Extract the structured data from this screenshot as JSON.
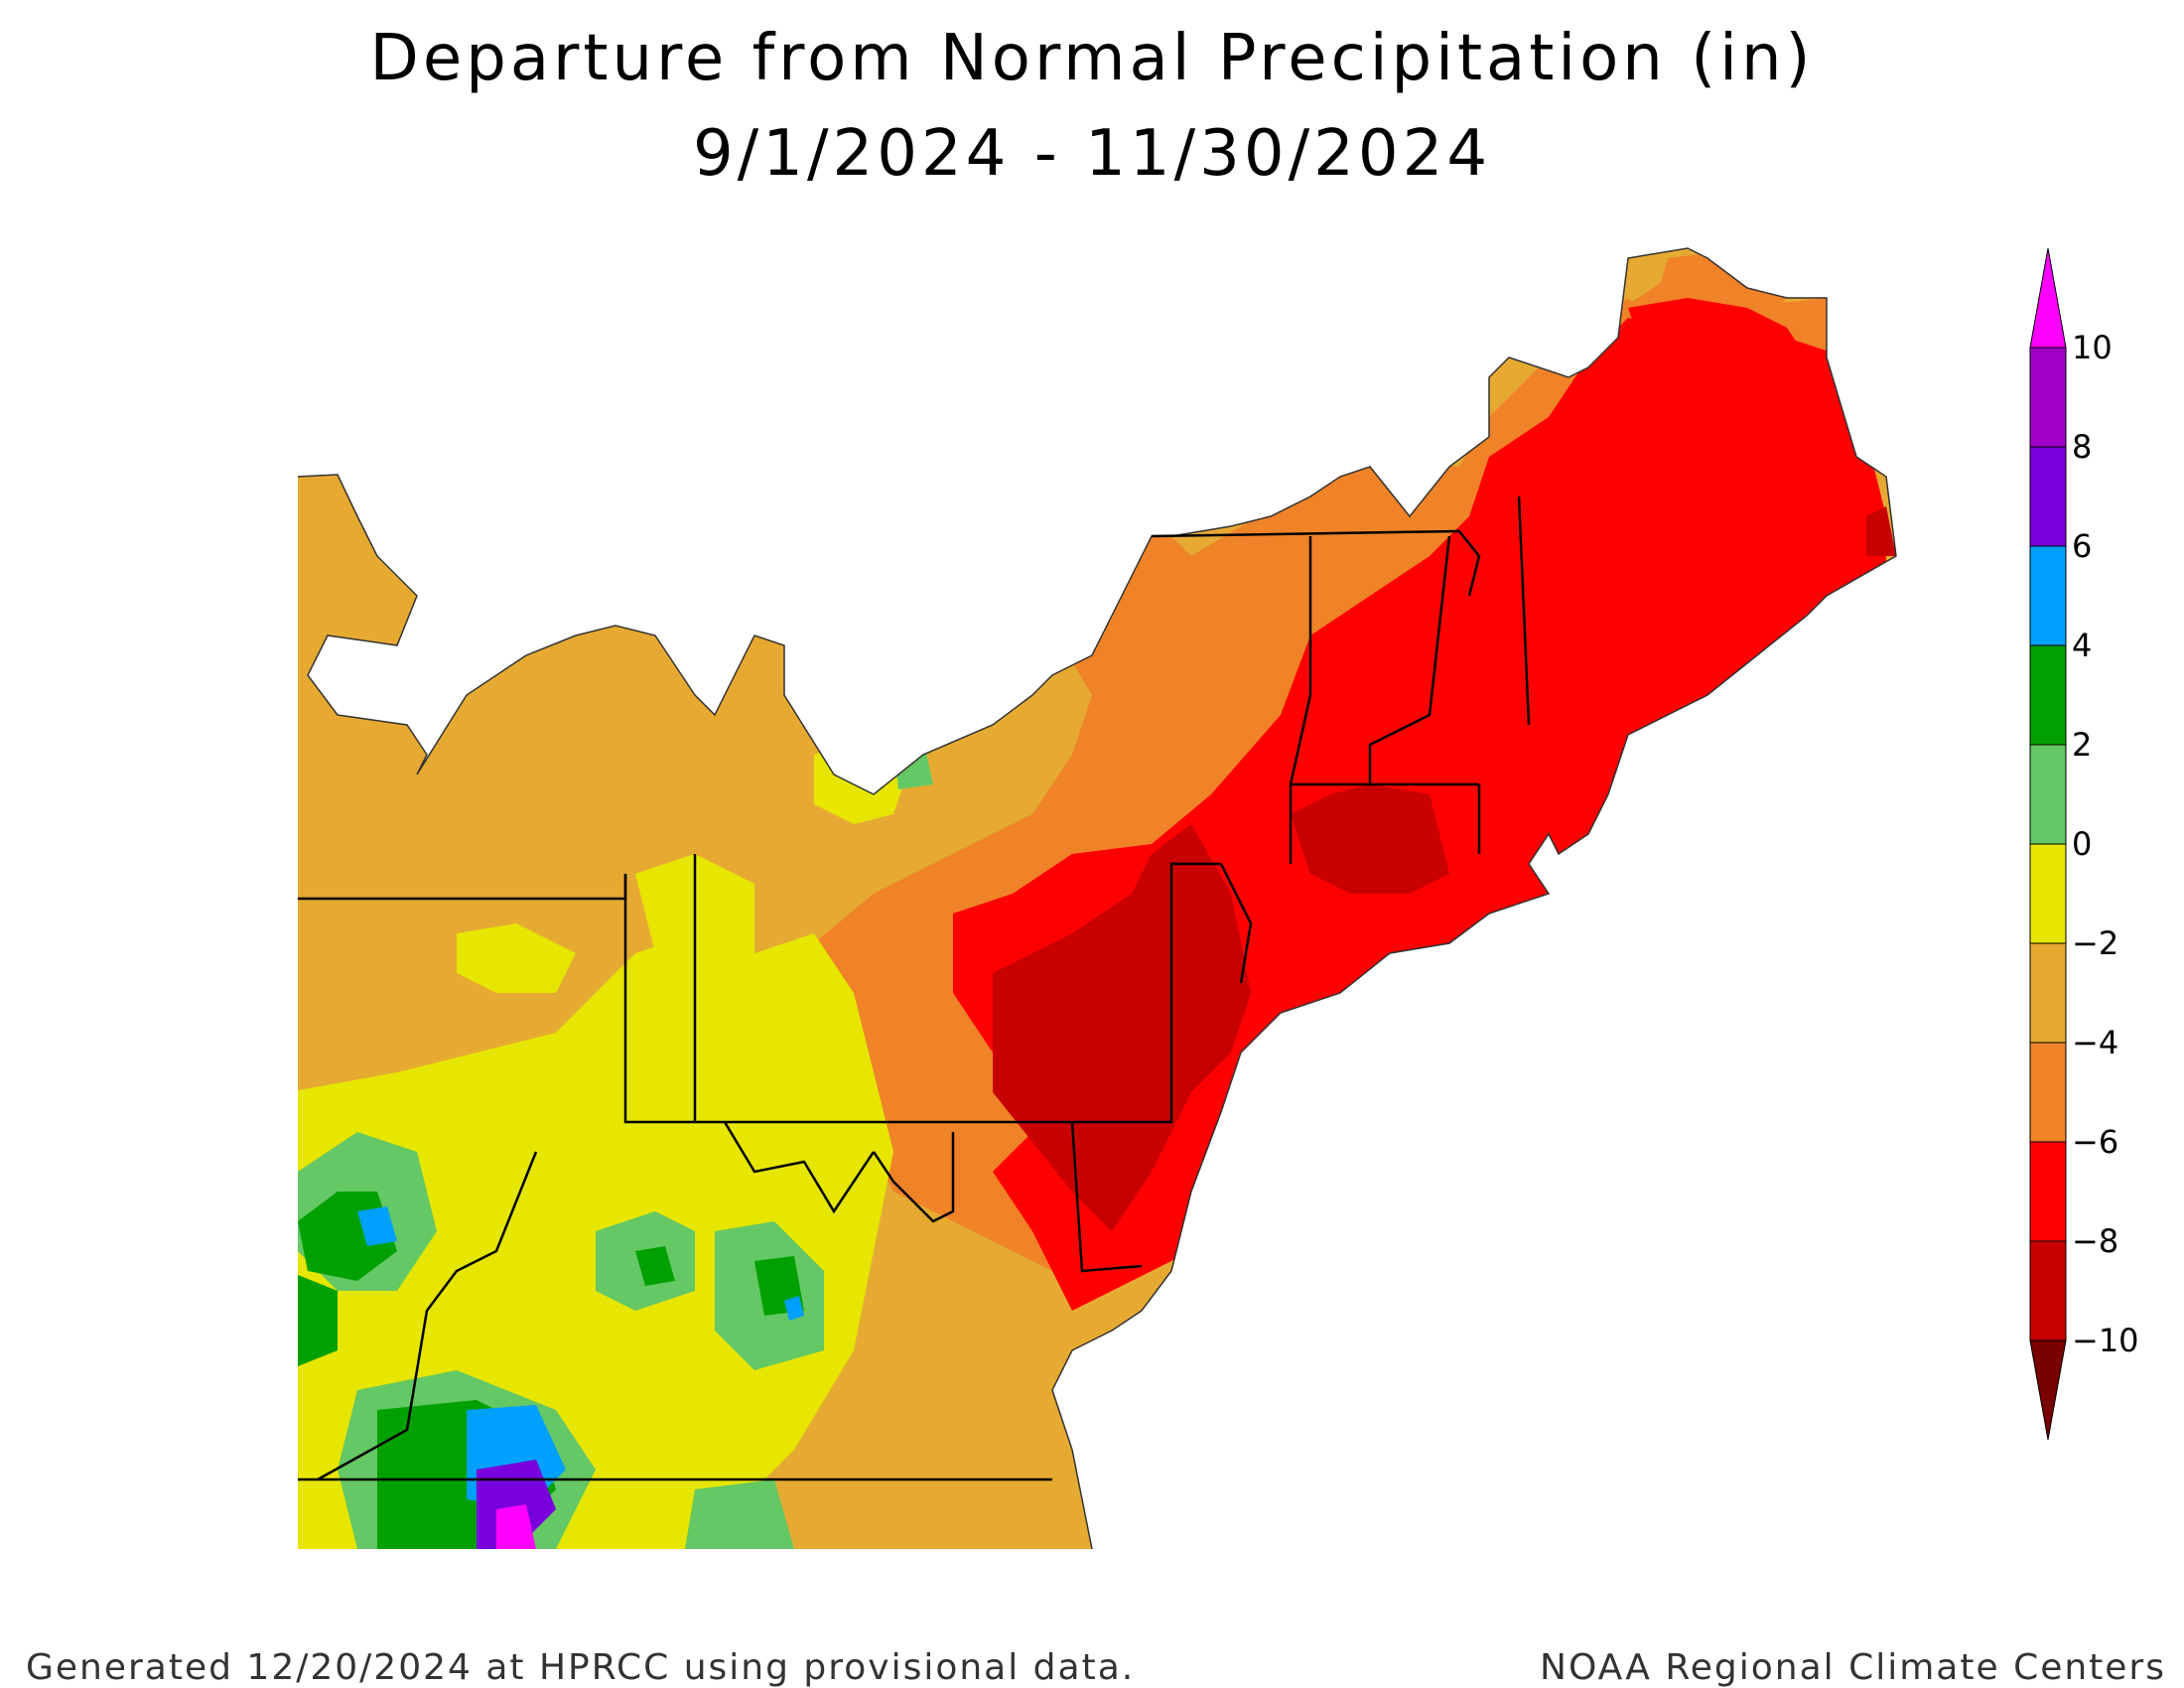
{
  "title": {
    "line1": "Departure from Normal Precipitation (in)",
    "line2": "9/1/2024 - 11/30/2024"
  },
  "footer": {
    "left": "Generated 12/20/2024 at HPRCC using provisional data.",
    "right": "NOAA Regional Climate Centers"
  },
  "legend": {
    "min_color": "#7a0000",
    "max_color": "#ff00ff",
    "bins": [
      {
        "low": -10,
        "high": -8,
        "color": "#c80000"
      },
      {
        "low": -8,
        "high": -6,
        "color": "#ff0000"
      },
      {
        "low": -6,
        "high": -4,
        "color": "#f08228"
      },
      {
        "low": -4,
        "high": -2,
        "color": "#e6aa32"
      },
      {
        "low": -2,
        "high": 0,
        "color": "#e6e600"
      },
      {
        "low": 0,
        "high": 2,
        "color": "#64c864"
      },
      {
        "low": 2,
        "high": 4,
        "color": "#00a000"
      },
      {
        "low": 4,
        "high": 6,
        "color": "#00a0ff"
      },
      {
        "low": 6,
        "high": 8,
        "color": "#7800dc"
      },
      {
        "low": 8,
        "high": 10,
        "color": "#a000c8"
      }
    ],
    "tick_labels": [
      "10",
      "8",
      "6",
      "4",
      "2",
      "0",
      "−2",
      "−4",
      "−6",
      "−8",
      "−10"
    ]
  }
}
